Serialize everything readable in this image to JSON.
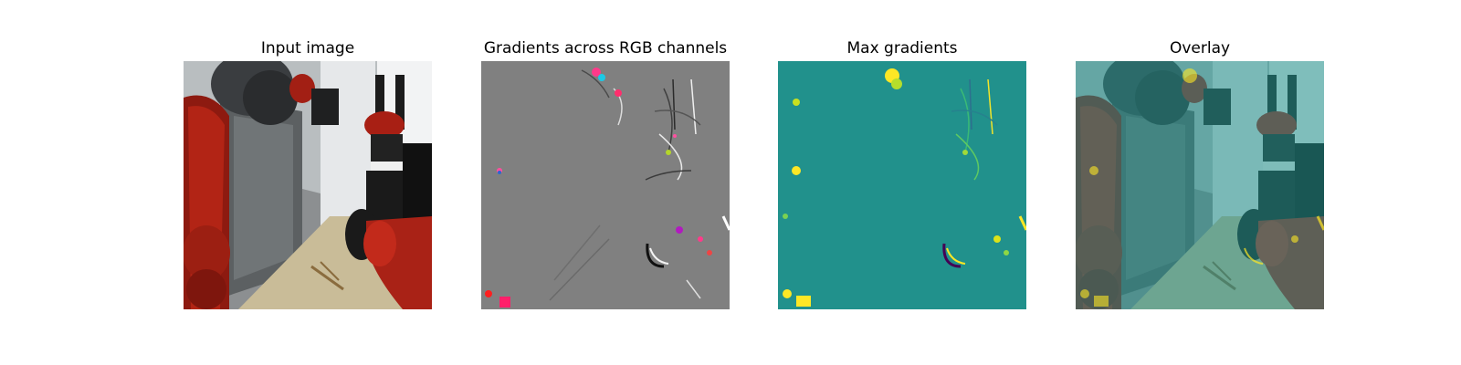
{
  "panels": [
    {
      "title": "Input image",
      "image": "robot-arm-photo"
    },
    {
      "title": "Gradients across RGB channels",
      "image": "rgb-gradient-map"
    },
    {
      "title": "Max gradients",
      "image": "max-gradient-heatmap"
    },
    {
      "title": "Overlay",
      "image": "gradient-overlay-photo"
    }
  ],
  "colors": {
    "gradient_background": "#808080",
    "heatmap_background": "#21918c",
    "heatmap_high": "#fde725",
    "heatmap_low": "#440154",
    "robot_red": "#b01e12"
  }
}
